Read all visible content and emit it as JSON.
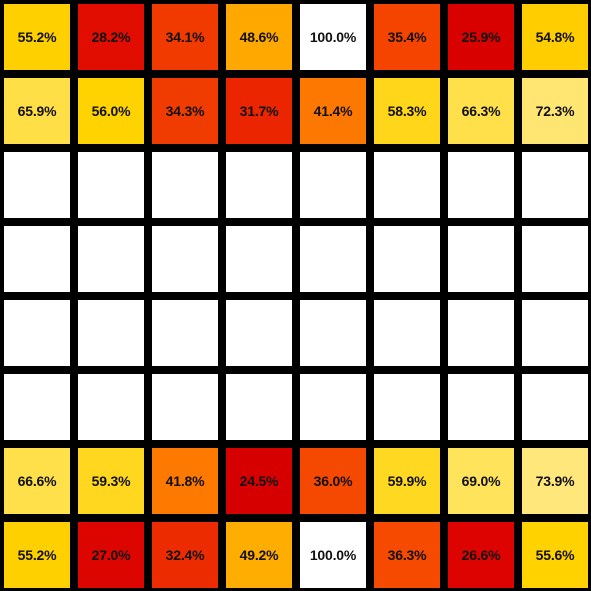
{
  "chart_data": {
    "type": "heatmap",
    "title": "",
    "rows": 8,
    "cols": 8,
    "value_unit": "%",
    "empty_color": "#ffffff",
    "cells": [
      [
        {
          "label": "55.2%",
          "value": 55.2,
          "color": "#ffd000"
        },
        {
          "label": "28.2%",
          "value": 28.2,
          "color": "#e00d00"
        },
        {
          "label": "34.1%",
          "value": 34.1,
          "color": "#f03a00"
        },
        {
          "label": "48.6%",
          "value": 48.6,
          "color": "#ffa900"
        },
        {
          "label": "100.0%",
          "value": 100.0,
          "color": "#ffffff"
        },
        {
          "label": "35.4%",
          "value": 35.4,
          "color": "#f44400"
        },
        {
          "label": "25.9%",
          "value": 25.9,
          "color": "#d90000"
        },
        {
          "label": "54.8%",
          "value": 54.8,
          "color": "#ffcd00"
        }
      ],
      [
        {
          "label": "65.9%",
          "value": 65.9,
          "color": "#ffdf45"
        },
        {
          "label": "56.0%",
          "value": 56.0,
          "color": "#ffd300"
        },
        {
          "label": "34.3%",
          "value": 34.3,
          "color": "#f03c00"
        },
        {
          "label": "31.7%",
          "value": 31.7,
          "color": "#ea2500"
        },
        {
          "label": "41.4%",
          "value": 41.4,
          "color": "#fd7800"
        },
        {
          "label": "58.3%",
          "value": 58.3,
          "color": "#ffd61a"
        },
        {
          "label": "66.3%",
          "value": 66.3,
          "color": "#ffe04a"
        },
        {
          "label": "72.3%",
          "value": 72.3,
          "color": "#ffe572"
        }
      ],
      [
        null,
        null,
        null,
        null,
        null,
        null,
        null,
        null
      ],
      [
        null,
        null,
        null,
        null,
        null,
        null,
        null,
        null
      ],
      [
        null,
        null,
        null,
        null,
        null,
        null,
        null,
        null
      ],
      [
        null,
        null,
        null,
        null,
        null,
        null,
        null,
        null
      ],
      [
        {
          "label": "66.6%",
          "value": 66.6,
          "color": "#ffe04b"
        },
        {
          "label": "59.3%",
          "value": 59.3,
          "color": "#ffd71f"
        },
        {
          "label": "41.8%",
          "value": 41.8,
          "color": "#fd7900"
        },
        {
          "label": "24.5%",
          "value": 24.5,
          "color": "#d70000"
        },
        {
          "label": "36.0%",
          "value": 36.0,
          "color": "#f54800"
        },
        {
          "label": "59.9%",
          "value": 59.9,
          "color": "#ffd822"
        },
        {
          "label": "69.0%",
          "value": 69.0,
          "color": "#ffe35b"
        },
        {
          "label": "73.9%",
          "value": 73.9,
          "color": "#ffe77c"
        }
      ],
      [
        {
          "label": "55.2%",
          "value": 55.2,
          "color": "#ffd000"
        },
        {
          "label": "27.0%",
          "value": 27.0,
          "color": "#dd0500"
        },
        {
          "label": "32.4%",
          "value": 32.4,
          "color": "#ec2b00"
        },
        {
          "label": "49.2%",
          "value": 49.2,
          "color": "#ffad00"
        },
        {
          "label": "100.0%",
          "value": 100.0,
          "color": "#ffffff"
        },
        {
          "label": "36.3%",
          "value": 36.3,
          "color": "#f54a00"
        },
        {
          "label": "26.6%",
          "value": 26.6,
          "color": "#dc0300"
        },
        {
          "label": "55.6%",
          "value": 55.6,
          "color": "#ffd200"
        }
      ]
    ]
  }
}
